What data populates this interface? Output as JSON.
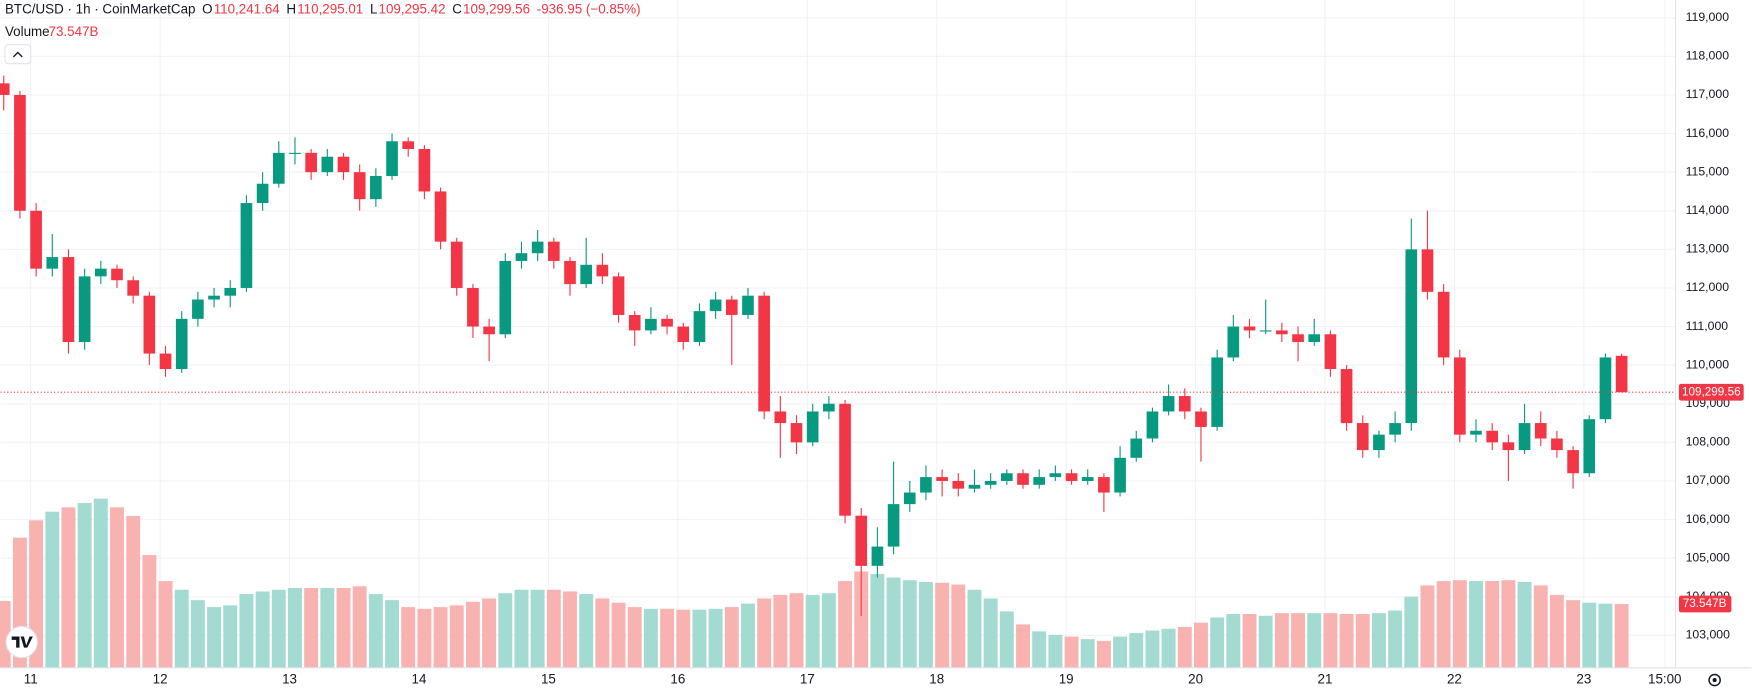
{
  "chart_data": {
    "type": "candlestick",
    "symbol": "BTC/USD · 1h · CoinMarketCap",
    "ohlc_legend": [
      {
        "key": "O",
        "text": "110,241.64"
      },
      {
        "key": "H",
        "text": "110,295.01"
      },
      {
        "key": "L",
        "text": "109,295.42"
      },
      {
        "key": "C",
        "text": "109,299.56"
      }
    ],
    "change": "-936.95 (−0.85%)",
    "volume_name": "Volume",
    "volume_label": "73.547B",
    "last_price": {
      "value": 109299.56,
      "label": "109,299.56"
    },
    "up_color": "#089981",
    "down_color": "#f23645",
    "volume_up_color": "#a3dbd2",
    "volume_down_color": "#f8b3b1",
    "grid": true,
    "xlim": [
      -5.6,
      305
    ],
    "xticks": [
      {
        "value": 0,
        "label": "11"
      },
      {
        "value": 24,
        "label": "12"
      },
      {
        "value": 48,
        "label": "13"
      },
      {
        "value": 72,
        "label": "14"
      },
      {
        "value": 96,
        "label": "15"
      },
      {
        "value": 120,
        "label": "16"
      },
      {
        "value": 144,
        "label": "17"
      },
      {
        "value": 168,
        "label": "18"
      },
      {
        "value": 192,
        "label": "19"
      },
      {
        "value": 216,
        "label": "20"
      },
      {
        "value": 240,
        "label": "21"
      },
      {
        "value": 264,
        "label": "22"
      },
      {
        "value": 288,
        "label": "23"
      },
      {
        "value": 303,
        "label": "15:00"
      }
    ],
    "ylim": [
      102160,
      119460
    ],
    "yticks": [
      {
        "value": 103000,
        "label": "103,000"
      },
      {
        "value": 104000,
        "label": "104,000"
      },
      {
        "value": 105000,
        "label": "105,000"
      },
      {
        "value": 106000,
        "label": "106,000"
      },
      {
        "value": 107000,
        "label": "107,000"
      },
      {
        "value": 108000,
        "label": "108,000"
      },
      {
        "value": 109000,
        "label": "109,000"
      },
      {
        "value": 110000,
        "label": "110,000"
      },
      {
        "value": 111000,
        "label": "111,000"
      },
      {
        "value": 112000,
        "label": "112,000"
      },
      {
        "value": 113000,
        "label": "113,000"
      },
      {
        "value": 114000,
        "label": "114,000"
      },
      {
        "value": 115000,
        "label": "115,000"
      },
      {
        "value": 116000,
        "label": "116,000"
      },
      {
        "value": 117000,
        "label": "117,000"
      },
      {
        "value": 118000,
        "label": "118,000"
      },
      {
        "value": 119000,
        "label": "119,000"
      }
    ],
    "volume_lim": [
      0,
      770
    ],
    "x": [
      -5,
      -2,
      1,
      4,
      7,
      10,
      13,
      16,
      19,
      22,
      25,
      28,
      31,
      34,
      37,
      40,
      43,
      46,
      49,
      52,
      55,
      58,
      61,
      64,
      67,
      70,
      73,
      76,
      79,
      82,
      85,
      88,
      91,
      94,
      97,
      100,
      103,
      106,
      109,
      112,
      115,
      118,
      121,
      124,
      127,
      130,
      133,
      136,
      139,
      142,
      145,
      148,
      151,
      154,
      157,
      160,
      163,
      166,
      169,
      172,
      175,
      178,
      181,
      184,
      187,
      190,
      193,
      196,
      199,
      202,
      205,
      208,
      211,
      214,
      217,
      220,
      223,
      226,
      229,
      232,
      235,
      238,
      241,
      244,
      247,
      250,
      253,
      256,
      259,
      262,
      265,
      268,
      271,
      274,
      277,
      280,
      283,
      286,
      289,
      292,
      295
    ],
    "open": [
      117300,
      117000,
      114000,
      112500,
      112800,
      110600,
      112300,
      112500,
      112200,
      111800,
      110300,
      109900,
      111200,
      111700,
      111800,
      112000,
      114200,
      114700,
      115500,
      115500,
      115000,
      115400,
      115000,
      114300,
      114900,
      115800,
      115600,
      114500,
      113200,
      112000,
      111000,
      110800,
      112700,
      112900,
      113200,
      112700,
      112100,
      112600,
      112300,
      111300,
      110900,
      111200,
      111000,
      110600,
      111400,
      111700,
      111300,
      111800,
      108800,
      108500,
      108000,
      108800,
      109000,
      106100,
      104800,
      105300,
      106400,
      106700,
      107100,
      107000,
      106800,
      106900,
      107000,
      107200,
      106900,
      107100,
      107200,
      107000,
      107100,
      106700,
      107600,
      108100,
      108800,
      109200,
      108800,
      108400,
      110200,
      111000,
      110900,
      110900,
      110800,
      110600,
      110800,
      109900,
      108500,
      107800,
      108200,
      108500,
      113000,
      111900,
      110200,
      108200,
      108300,
      108000,
      107800,
      108500,
      108100,
      107800,
      107200,
      108600,
      110241.64
    ],
    "high": [
      117500,
      117100,
      114200,
      113400,
      113000,
      112500,
      112700,
      112600,
      112300,
      111900,
      110500,
      111400,
      111900,
      112000,
      112200,
      114400,
      115000,
      115800,
      115900,
      115600,
      115600,
      115500,
      115200,
      115100,
      116000,
      115900,
      115700,
      114600,
      113300,
      112100,
      111200,
      112900,
      113200,
      113500,
      113300,
      112800,
      113300,
      112900,
      112400,
      111400,
      111500,
      111300,
      111100,
      111600,
      111900,
      111800,
      112000,
      111900,
      109200,
      108700,
      109000,
      109200,
      109100,
      106300,
      105800,
      107500,
      107000,
      107400,
      107300,
      107200,
      107300,
      107200,
      107300,
      107300,
      107300,
      107400,
      107300,
      107300,
      107200,
      107900,
      108300,
      108900,
      109500,
      109400,
      108900,
      110400,
      111300,
      111200,
      111700,
      111100,
      111000,
      111200,
      110900,
      110000,
      108700,
      108300,
      108800,
      113800,
      114000,
      112100,
      110400,
      108600,
      108500,
      108200,
      109000,
      108800,
      108300,
      107900,
      108700,
      110300,
      110295.01
    ],
    "low": [
      116600,
      113800,
      112300,
      112300,
      110300,
      110400,
      112100,
      112000,
      111600,
      110000,
      109700,
      109800,
      111000,
      111500,
      111500,
      111900,
      114000,
      114600,
      115200,
      114800,
      114900,
      114800,
      114000,
      114100,
      114800,
      115400,
      114300,
      113000,
      111800,
      110700,
      110100,
      110700,
      112500,
      112700,
      112500,
      111800,
      112000,
      112100,
      111100,
      110500,
      110800,
      110800,
      110400,
      110500,
      111200,
      110000,
      111200,
      108600,
      107600,
      107700,
      107900,
      108600,
      105900,
      103500,
      104500,
      105100,
      106200,
      106500,
      106600,
      106600,
      106700,
      106800,
      106900,
      106800,
      106800,
      107000,
      106900,
      106900,
      106200,
      106600,
      107500,
      108000,
      108700,
      108600,
      107500,
      108300,
      110100,
      110700,
      110800,
      110600,
      110100,
      110500,
      109700,
      108300,
      107600,
      107600,
      108000,
      108300,
      111700,
      110000,
      108000,
      108000,
      107800,
      107000,
      107700,
      107900,
      107600,
      106800,
      107100,
      108500,
      109295.42
    ],
    "close": [
      117000,
      114000,
      112500,
      112800,
      110600,
      112300,
      112500,
      112200,
      111800,
      110300,
      109900,
      111200,
      111700,
      111800,
      112000,
      114200,
      114700,
      115500,
      115500,
      115000,
      115400,
      115000,
      114300,
      114900,
      115800,
      115600,
      114500,
      113200,
      112000,
      111000,
      110800,
      112700,
      112900,
      113200,
      112700,
      112100,
      112600,
      112300,
      111300,
      110900,
      111200,
      111000,
      110600,
      111400,
      111700,
      111300,
      111800,
      108800,
      108500,
      108000,
      108800,
      109000,
      106100,
      104800,
      105300,
      106400,
      106700,
      107100,
      107000,
      106800,
      106900,
      107000,
      107200,
      106900,
      107100,
      107200,
      107000,
      107100,
      106700,
      107600,
      108100,
      108800,
      109200,
      108800,
      108400,
      110200,
      111000,
      110900,
      110900,
      110800,
      110600,
      110800,
      109900,
      108500,
      107800,
      108200,
      108500,
      113000,
      111900,
      110200,
      108200,
      108300,
      108000,
      107800,
      108500,
      108100,
      107800,
      107200,
      108600,
      110200,
      109299.56
    ],
    "volume": [
      77,
      150,
      170,
      180,
      185,
      190,
      195,
      185,
      175,
      130,
      100,
      90,
      78,
      70,
      72,
      85,
      88,
      90,
      92,
      92,
      92,
      92,
      94,
      85,
      78,
      70,
      68,
      70,
      72,
      76,
      80,
      86,
      90,
      90,
      90,
      88,
      85,
      80,
      75,
      70,
      68,
      68,
      67,
      67,
      68,
      70,
      74,
      80,
      84,
      86,
      84,
      86,
      100,
      111,
      108,
      104,
      101,
      99,
      98,
      96,
      90,
      80,
      65,
      50,
      42,
      38,
      36,
      33,
      31,
      36,
      40,
      43,
      45,
      47,
      52,
      58,
      62,
      62,
      60,
      63,
      63,
      63,
      63,
      62,
      62,
      63,
      66,
      82,
      95,
      100,
      101,
      100,
      100,
      101,
      99,
      95,
      84,
      78,
      75,
      74,
      73.547
    ]
  }
}
